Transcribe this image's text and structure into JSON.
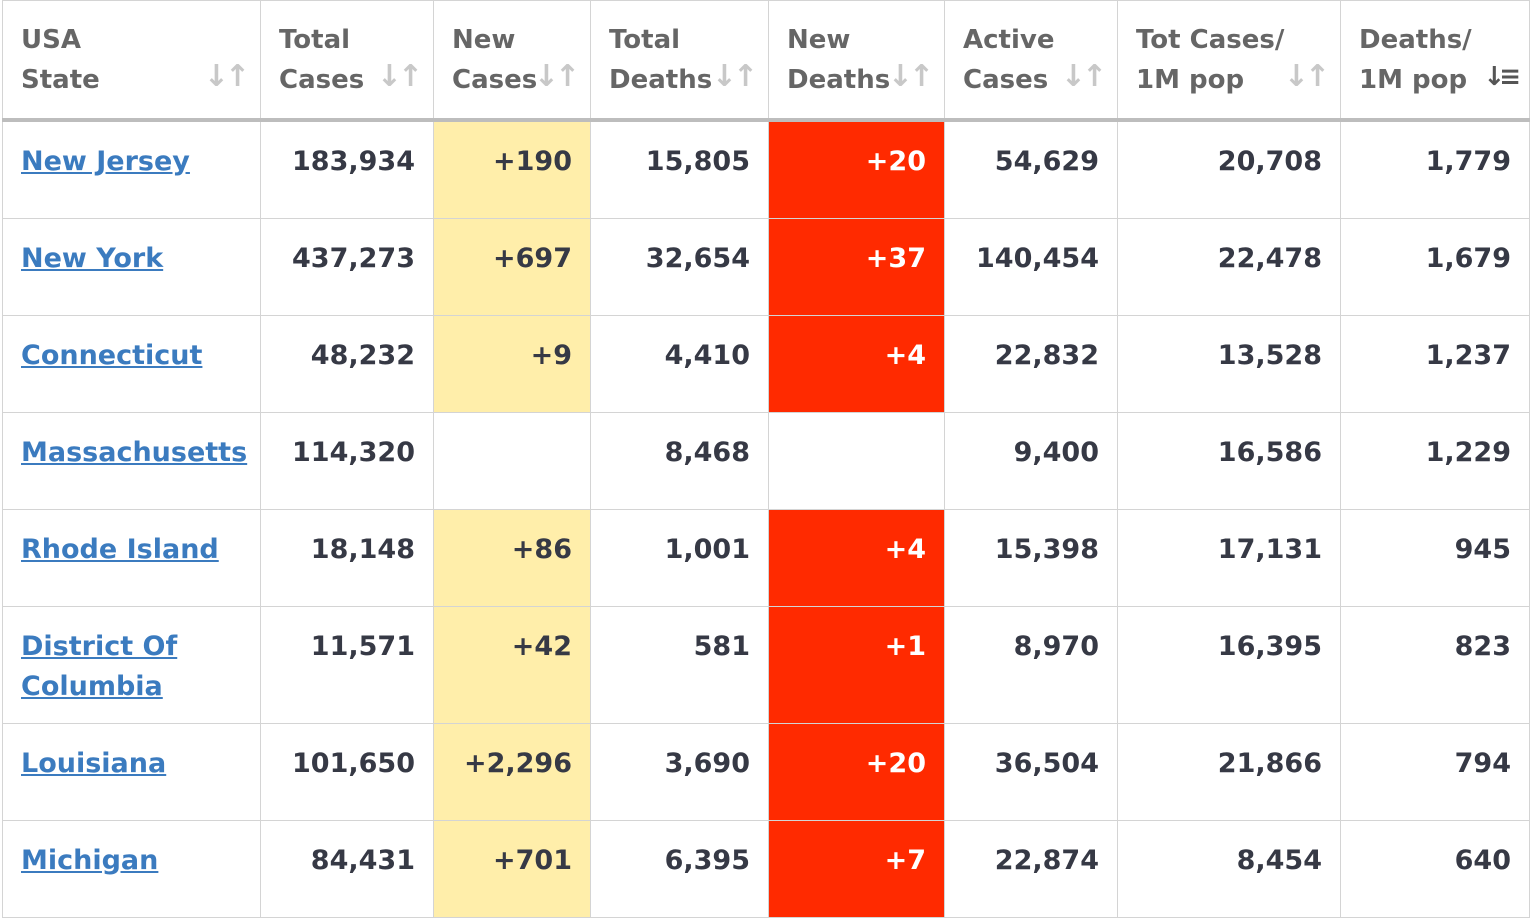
{
  "headers": [
    {
      "line1": "USA",
      "line2": "State"
    },
    {
      "line1": "Total",
      "line2": "Cases"
    },
    {
      "line1": "New",
      "line2": "Cases"
    },
    {
      "line1": "Total",
      "line2": "Deaths"
    },
    {
      "line1": "New",
      "line2": "Deaths"
    },
    {
      "line1": "Active",
      "line2": "Cases"
    },
    {
      "line1": "Tot Cases/",
      "line2": "1M pop"
    },
    {
      "line1": "Deaths/",
      "line2": "1M pop"
    }
  ],
  "sort_icons": {
    "inactive": "↓↑",
    "active": "↓≡"
  },
  "active_sort_column": "Deaths/ 1M pop",
  "colors": {
    "new_cases_bg": "#ffeeaa",
    "new_deaths_bg": "#ff2a00",
    "link": "#3b7bbf"
  },
  "rows": [
    {
      "state": "New Jersey",
      "total_cases": "183,934",
      "new_cases": "+190",
      "total_deaths": "15,805",
      "new_deaths": "+20",
      "active_cases": "54,629",
      "tot_cases_1m": "20,708",
      "deaths_1m": "1,779"
    },
    {
      "state": "New York",
      "total_cases": "437,273",
      "new_cases": "+697",
      "total_deaths": "32,654",
      "new_deaths": "+37",
      "active_cases": "140,454",
      "tot_cases_1m": "22,478",
      "deaths_1m": "1,679"
    },
    {
      "state": "Connecticut",
      "total_cases": "48,232",
      "new_cases": "+9",
      "total_deaths": "4,410",
      "new_deaths": "+4",
      "active_cases": "22,832",
      "tot_cases_1m": "13,528",
      "deaths_1m": "1,237"
    },
    {
      "state": "Massachusetts",
      "total_cases": "114,320",
      "new_cases": "",
      "total_deaths": "8,468",
      "new_deaths": "",
      "active_cases": "9,400",
      "tot_cases_1m": "16,586",
      "deaths_1m": "1,229"
    },
    {
      "state": "Rhode Island",
      "total_cases": "18,148",
      "new_cases": "+86",
      "total_deaths": "1,001",
      "new_deaths": "+4",
      "active_cases": "15,398",
      "tot_cases_1m": "17,131",
      "deaths_1m": "945"
    },
    {
      "state": "District Of Columbia",
      "total_cases": "11,571",
      "new_cases": "+42",
      "total_deaths": "581",
      "new_deaths": "+1",
      "active_cases": "8,970",
      "tot_cases_1m": "16,395",
      "deaths_1m": "823"
    },
    {
      "state": "Louisiana",
      "total_cases": "101,650",
      "new_cases": "+2,296",
      "total_deaths": "3,690",
      "new_deaths": "+20",
      "active_cases": "36,504",
      "tot_cases_1m": "21,866",
      "deaths_1m": "794"
    },
    {
      "state": "Michigan",
      "total_cases": "84,431",
      "new_cases": "+701",
      "total_deaths": "6,395",
      "new_deaths": "+7",
      "active_cases": "22,874",
      "tot_cases_1m": "8,454",
      "deaths_1m": "640"
    }
  ]
}
